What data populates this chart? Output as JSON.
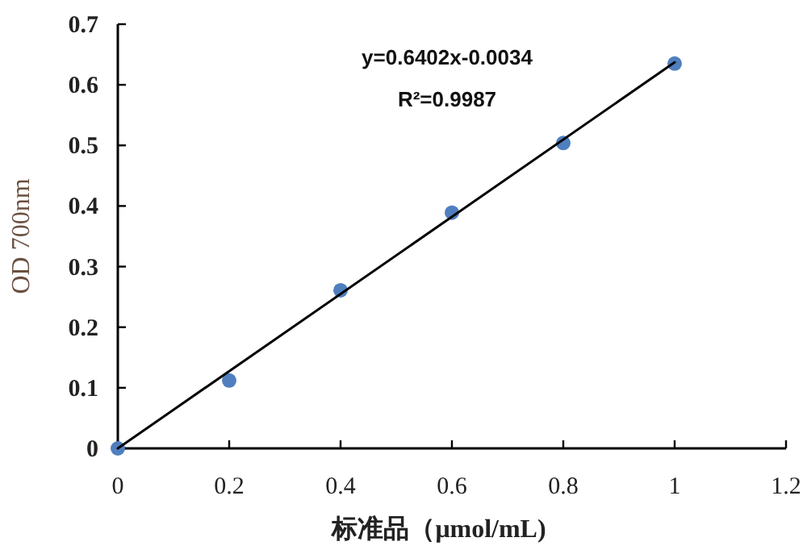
{
  "chart_data": {
    "type": "scatter",
    "xlabel": "标准品（μmol/mL)",
    "ylabel": "OD 700nm",
    "annotations": [
      "y=0.6402x-0.0034",
      "R²=0.9987"
    ],
    "x": [
      0,
      0.2,
      0.4,
      0.6,
      0.8,
      1.0
    ],
    "series": [
      {
        "color": "#4f7fbf",
        "marker": "circle",
        "values": [
          0,
          0.112,
          0.261,
          0.389,
          0.504,
          0.635
        ]
      },
      {
        "type": "line",
        "color": "#000000",
        "line_style": "solid",
        "x": [
          0,
          1.0
        ],
        "values": [
          0,
          0.637
        ]
      }
    ],
    "xlim": [
      0,
      1.2
    ],
    "ylim": [
      0,
      0.7
    ],
    "xticks": [
      0,
      0.2,
      0.4,
      0.6,
      0.8,
      1,
      1.2
    ],
    "yticks": [
      0,
      0.1,
      0.2,
      0.3,
      0.4,
      0.5,
      0.6,
      0.7
    ]
  }
}
